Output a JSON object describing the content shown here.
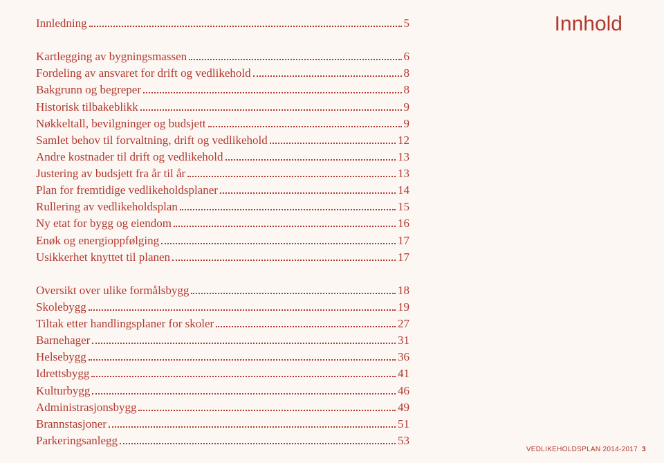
{
  "colors": {
    "text": "#b0392e",
    "background": "#fdf7f4",
    "dots": "#b0392e"
  },
  "typography": {
    "body_family": "Georgia, serif",
    "body_size_pt": 13,
    "heading_family": "Arial, sans-serif",
    "heading_size_pt": 23,
    "footer_size_pt": 8
  },
  "heading": "Innhold",
  "toc": {
    "groups": [
      [
        {
          "label": "Innledning",
          "page": "5"
        }
      ],
      [
        {
          "label": "Kartlegging av bygningsmassen",
          "page": "6"
        },
        {
          "label": "Fordeling av ansvaret for drift og vedlikehold",
          "page": "8"
        },
        {
          "label": "Bakgrunn og begreper",
          "page": "8"
        },
        {
          "label": "Historisk tilbakeblikk",
          "page": "9"
        },
        {
          "label": "Nøkkeltall, bevilgninger og budsjett",
          "page": "9"
        },
        {
          "label": "Samlet behov til forvaltning, drift og vedlikehold",
          "page": "12"
        },
        {
          "label": "Andre kostnader til drift og vedlikehold",
          "page": "13"
        },
        {
          "label": "Justering av budsjett fra år til år",
          "page": "13"
        },
        {
          "label": "Plan for fremtidige vedlikeholdsplaner",
          "page": "14"
        },
        {
          "label": "Rullering av vedlikeholdsplan",
          "page": "15"
        },
        {
          "label": "Ny etat for bygg og eiendom",
          "page": "16"
        },
        {
          "label": "Enøk og energioppfølging",
          "page": "17"
        },
        {
          "label": "Usikkerhet knyttet til planen",
          "page": "17"
        }
      ],
      [
        {
          "label": "Oversikt over ulike formålsbygg",
          "page": "18"
        },
        {
          "label": "Skolebygg",
          "page": "19"
        },
        {
          "label": "Tiltak etter handlingsplaner for skoler",
          "page": "27"
        },
        {
          "label": "Barnehager",
          "page": "31"
        },
        {
          "label": "Helsebygg",
          "page": "36"
        },
        {
          "label": "Idrettsbygg",
          "page": "41"
        },
        {
          "label": "Kulturbygg",
          "page": "46"
        },
        {
          "label": "Administrasjonsbygg",
          "page": "49"
        },
        {
          "label": "Brannstasjoner",
          "page": "51"
        },
        {
          "label": "Parkeringsanlegg",
          "page": "53"
        }
      ]
    ]
  },
  "footer": {
    "text": "VEDLIKEHOLDSPLAN  2014-2017",
    "page_number": "3"
  }
}
